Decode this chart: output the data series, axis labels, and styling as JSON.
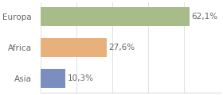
{
  "categories": [
    "Europa",
    "Africa",
    "Asia"
  ],
  "values": [
    62.1,
    27.6,
    10.3
  ],
  "labels": [
    "62,1%",
    "27,6%",
    "10,3%"
  ],
  "bar_colors": [
    "#a8bc8a",
    "#e8b07a",
    "#7a8fbf"
  ],
  "background_color": "#ffffff",
  "grid_color": "#dddddd",
  "text_color": "#666666",
  "figsize": [
    2.8,
    1.2
  ],
  "dpi": 100,
  "xlim": [
    0,
    75
  ],
  "bar_height": 0.62
}
